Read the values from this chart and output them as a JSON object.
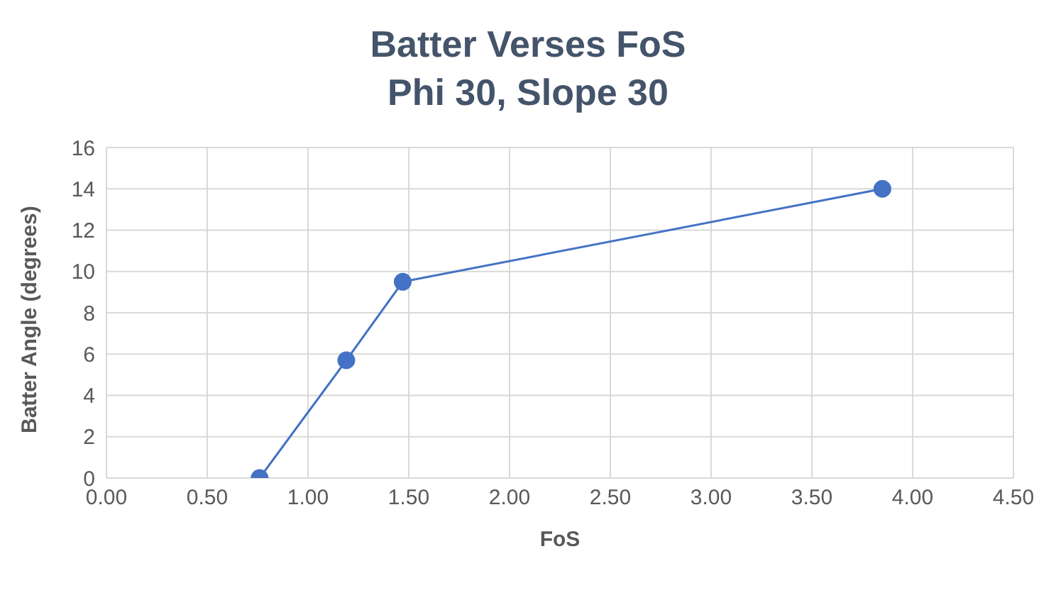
{
  "chart_data": {
    "type": "line",
    "title": "Batter Verses FoS",
    "subtitle": "Phi 30, Slope 30",
    "xlabel": "FoS",
    "ylabel": "Batter Angle (degrees)",
    "x": [
      0.76,
      1.19,
      1.47,
      3.85
    ],
    "series": [
      {
        "color": "#4472c4",
        "values": [
          0,
          5.7,
          9.5,
          14
        ]
      }
    ],
    "xlim": [
      0,
      4.5
    ],
    "xticks": [
      {
        "value": 0,
        "label": "0.00"
      },
      {
        "value": 0.5,
        "label": "0.50"
      },
      {
        "value": 1,
        "label": "1.00"
      },
      {
        "value": 1.5,
        "label": "1.50"
      },
      {
        "value": 2,
        "label": "2.00"
      },
      {
        "value": 2.5,
        "label": "2.50"
      },
      {
        "value": 3,
        "label": "3.00"
      },
      {
        "value": 3.5,
        "label": "3.50"
      },
      {
        "value": 4,
        "label": "4.00"
      },
      {
        "value": 4.5,
        "label": "4.50"
      }
    ],
    "ylim": [
      0,
      16
    ],
    "yticks": [
      0,
      2,
      4,
      6,
      8,
      10,
      12,
      14,
      16
    ],
    "grid": true,
    "marker": "circle",
    "line_style": "solid"
  }
}
